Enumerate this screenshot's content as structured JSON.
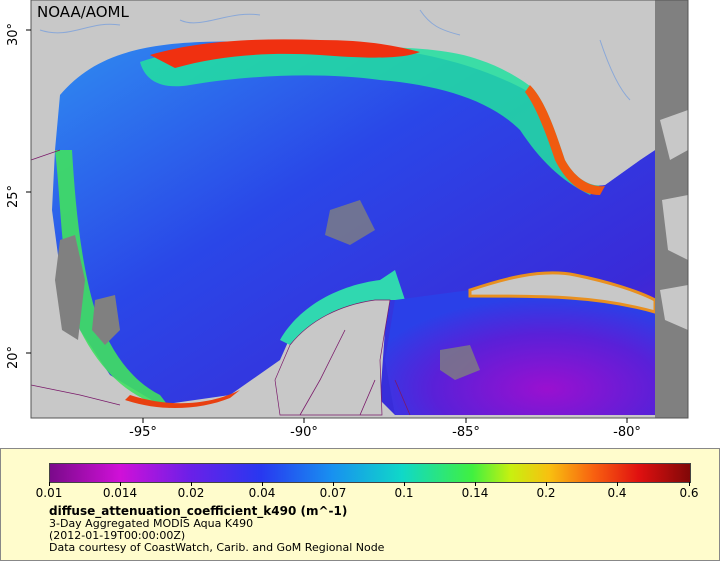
{
  "map": {
    "credit": "NOAA/AOML",
    "x_ticks": [
      "-95°",
      "-90°",
      "-85°",
      "-80°"
    ],
    "y_ticks": [
      "30°",
      "25°",
      "20°"
    ],
    "land_color": "#c8c8c8",
    "nodata_color": "#808080",
    "border_color": "#7a1a6a",
    "river_color": "#8aa8d8"
  },
  "legend": {
    "ticks": [
      "0.01",
      "0.014",
      "0.02",
      "0.04",
      "0.07",
      "0.1",
      "0.14",
      "0.2",
      "0.4",
      "0.6"
    ],
    "variable": "diffuse_attenuation_coefficient_k490 (m^-1)",
    "product": "3-Day Aggregated MODIS Aqua K490",
    "time": "(2012-01-19T00:00:00Z)",
    "courtesy": "Data courtesy of CoastWatch, Carib. and GoM Regional Node"
  }
}
